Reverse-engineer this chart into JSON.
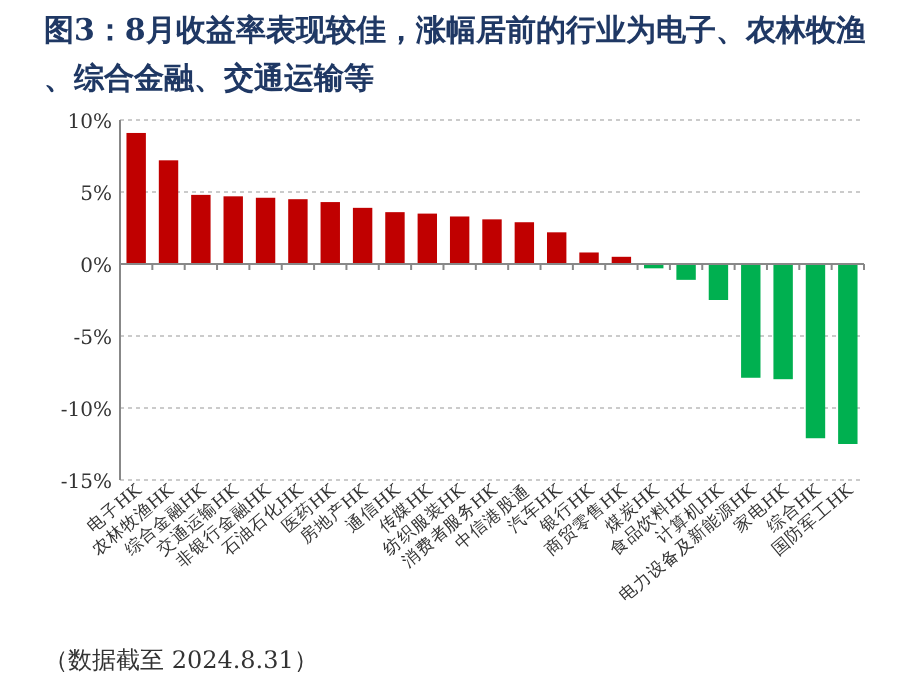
{
  "chart_data": {
    "type": "bar",
    "title": "图3：8月收益率表现较佳，涨幅居前的行业为电子、农林牧渔、综合金融、交通运输等",
    "categories": [
      "电子HK",
      "农林牧渔HK",
      "综合金融HK",
      "交通运输HK",
      "非银行金融HK",
      "石油石化HK",
      "医药HK",
      "房地产HK",
      "通信HK",
      "传媒HK",
      "纺织服装HK",
      "消费者服务HK",
      "中信港股通",
      "汽车HK",
      "银行HK",
      "商贸零售HK",
      "煤炭HK",
      "食品饮料HK",
      "计算机HK",
      "电力设备及新能源HK",
      "家电HK",
      "综合HK",
      "国防军工HK"
    ],
    "values": [
      9.1,
      7.2,
      4.8,
      4.7,
      4.6,
      4.5,
      4.3,
      3.9,
      3.6,
      3.5,
      3.3,
      3.1,
      2.9,
      2.2,
      0.8,
      0.5,
      -0.3,
      -1.1,
      -2.5,
      -7.9,
      -8.0,
      -12.1,
      -12.5
    ],
    "colors": [
      "#c00000",
      "#c00000",
      "#c00000",
      "#c00000",
      "#c00000",
      "#c00000",
      "#c00000",
      "#c00000",
      "#c00000",
      "#c00000",
      "#c00000",
      "#c00000",
      "#c00000",
      "#c00000",
      "#c00000",
      "#c00000",
      "#00b050",
      "#00b050",
      "#00b050",
      "#00b050",
      "#00b050",
      "#00b050",
      "#00b050"
    ],
    "ylim": [
      -15,
      10
    ],
    "yticks": [
      {
        "value": -15,
        "label": "-15%"
      },
      {
        "value": -10,
        "label": "-10%"
      },
      {
        "value": -5,
        "label": "-5%"
      },
      {
        "value": 0,
        "label": "0%"
      },
      {
        "value": 5,
        "label": "5%"
      },
      {
        "value": 10,
        "label": "10%"
      }
    ],
    "grid": "y",
    "annotations": [
      "（数据截至 2024.8.31）"
    ]
  }
}
